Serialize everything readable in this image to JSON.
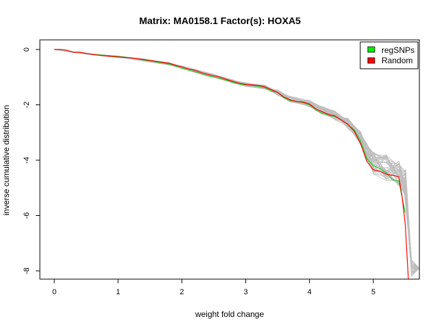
{
  "chart_data": {
    "type": "line",
    "title": "Matrix: MA0158.1 Factor(s): HOXA5",
    "xlabel": "weight fold change",
    "ylabel": "inverse cumulative distribution",
    "xlim": [
      -0.3,
      5.72
    ],
    "ylim": [
      -8.3,
      0.25
    ],
    "xticks": [
      0,
      1,
      2,
      3,
      4,
      5
    ],
    "yticks": [
      0,
      -2,
      -4,
      -6,
      -8
    ],
    "grid": false,
    "legend_position": "top-right",
    "legend": [
      {
        "label": "regSNPs",
        "color": "#00ee00"
      },
      {
        "label": "Random",
        "color": "#ff0000"
      }
    ],
    "background_series_color": "#bebebe",
    "background_series_count": 40,
    "series": [
      {
        "name": "regSNPs",
        "color": "#22cc22",
        "x": [
          0,
          0.1,
          0.2,
          0.3,
          0.4,
          0.5,
          0.6,
          0.8,
          1.0,
          1.2,
          1.4,
          1.6,
          1.8,
          1.9,
          2.0,
          2.1,
          2.2,
          2.3,
          2.4,
          2.5,
          2.6,
          2.7,
          2.8,
          2.9,
          3.0,
          3.1,
          3.2,
          3.3,
          3.4,
          3.5,
          3.6,
          3.7,
          3.8,
          3.9,
          4.0,
          4.1,
          4.2,
          4.3,
          4.4,
          4.5,
          4.6,
          4.7,
          4.8,
          4.9,
          5.0,
          5.1,
          5.2,
          5.3,
          5.4,
          5.5
        ],
        "values": [
          0,
          0,
          -0.03,
          -0.1,
          -0.1,
          -0.14,
          -0.17,
          -0.21,
          -0.25,
          -0.3,
          -0.38,
          -0.45,
          -0.53,
          -0.6,
          -0.68,
          -0.74,
          -0.8,
          -0.88,
          -0.95,
          -1.0,
          -1.05,
          -1.12,
          -1.18,
          -1.25,
          -1.28,
          -1.3,
          -1.33,
          -1.38,
          -1.5,
          -1.55,
          -1.75,
          -1.85,
          -1.88,
          -1.92,
          -2.0,
          -2.2,
          -2.3,
          -2.38,
          -2.42,
          -2.55,
          -2.7,
          -2.9,
          -3.3,
          -3.95,
          -4.2,
          -4.3,
          -4.45,
          -4.7,
          -4.75,
          -5.9
        ]
      },
      {
        "name": "Random",
        "color": "#ff0000",
        "x": [
          0,
          0.1,
          0.2,
          0.3,
          0.4,
          0.5,
          0.6,
          0.8,
          1.0,
          1.2,
          1.4,
          1.6,
          1.8,
          1.9,
          2.0,
          2.1,
          2.2,
          2.3,
          2.4,
          2.5,
          2.6,
          2.7,
          2.8,
          2.9,
          3.0,
          3.1,
          3.2,
          3.3,
          3.4,
          3.5,
          3.6,
          3.7,
          3.8,
          3.9,
          4.0,
          4.1,
          4.2,
          4.3,
          4.4,
          4.5,
          4.6,
          4.7,
          4.8,
          4.9,
          5.0,
          5.1,
          5.2,
          5.3,
          5.4,
          5.45,
          5.5,
          5.55
        ],
        "values": [
          0,
          0,
          -0.03,
          -0.1,
          -0.1,
          -0.14,
          -0.18,
          -0.23,
          -0.27,
          -0.3,
          -0.36,
          -0.43,
          -0.5,
          -0.57,
          -0.63,
          -0.7,
          -0.75,
          -0.83,
          -0.9,
          -0.95,
          -1.0,
          -1.08,
          -1.15,
          -1.22,
          -1.26,
          -1.28,
          -1.3,
          -1.35,
          -1.45,
          -1.55,
          -1.72,
          -1.82,
          -1.88,
          -1.9,
          -1.97,
          -2.15,
          -2.25,
          -2.35,
          -2.4,
          -2.55,
          -2.7,
          -2.95,
          -3.4,
          -4.05,
          -4.35,
          -4.4,
          -4.5,
          -4.55,
          -4.6,
          -5.3,
          -6.3,
          -8.3
        ]
      }
    ],
    "background_series": {
      "x": [
        0,
        0.3,
        0.6,
        1.0,
        1.4,
        1.8,
        2.0,
        2.2,
        2.5,
        2.8,
        3.0,
        3.3,
        3.5,
        3.7,
        4.0,
        4.2,
        4.4,
        4.6,
        4.8,
        4.9,
        5.0,
        5.2,
        5.4,
        5.5,
        5.6,
        5.72
      ],
      "baseline": [
        0,
        -0.1,
        -0.18,
        -0.26,
        -0.38,
        -0.52,
        -0.64,
        -0.77,
        -0.95,
        -1.15,
        -1.27,
        -1.36,
        -1.55,
        -1.8,
        -1.95,
        -2.2,
        -2.38,
        -2.65,
        -3.2,
        -3.7,
        -4.1,
        -4.25,
        -4.4,
        -4.8,
        -7.9,
        -7.9
      ],
      "spread": [
        0,
        0.01,
        0.02,
        0.03,
        0.04,
        0.05,
        0.05,
        0.06,
        0.06,
        0.07,
        0.07,
        0.08,
        0.09,
        0.1,
        0.12,
        0.14,
        0.16,
        0.18,
        0.25,
        0.3,
        0.4,
        0.5,
        0.55,
        0.5,
        0.3,
        0.0
      ]
    }
  }
}
